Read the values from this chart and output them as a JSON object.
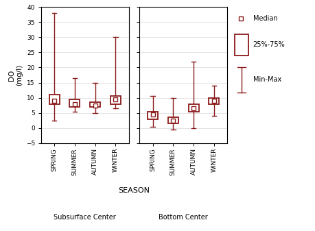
{
  "ylabel": "DO\n(mg/l)",
  "xlabel": "SEASON",
  "ylim": [
    -5,
    40
  ],
  "yticks": [
    -5,
    0,
    5,
    10,
    15,
    20,
    25,
    30,
    35,
    40
  ],
  "color": "#8B1A1A",
  "seasons": [
    "SPRING",
    "SUMMER",
    "AUTUMN",
    "WINTER"
  ],
  "subsurface": {
    "label": "Subsurface Center",
    "median": [
      9.0,
      8.0,
      7.5,
      9.5
    ],
    "q25": [
      8.0,
      7.0,
      7.0,
      8.0
    ],
    "q75": [
      11.0,
      9.5,
      8.5,
      10.5
    ],
    "wlo": [
      2.5,
      5.5,
      5.0,
      6.5
    ],
    "whi": [
      38.0,
      16.5,
      15.0,
      30.0
    ]
  },
  "bottom": {
    "label": "Bottom Center",
    "median": [
      4.5,
      2.5,
      6.5,
      9.0
    ],
    "q25": [
      3.0,
      1.5,
      5.5,
      8.0
    ],
    "q75": [
      5.5,
      3.5,
      8.0,
      10.0
    ],
    "wlo": [
      0.5,
      -0.5,
      0.0,
      4.0
    ],
    "whi": [
      10.5,
      10.0,
      22.0,
      14.0
    ]
  },
  "legend": {
    "median_label": "Median",
    "box_label": "25%-75%",
    "whisker_label": "Min-Max"
  }
}
